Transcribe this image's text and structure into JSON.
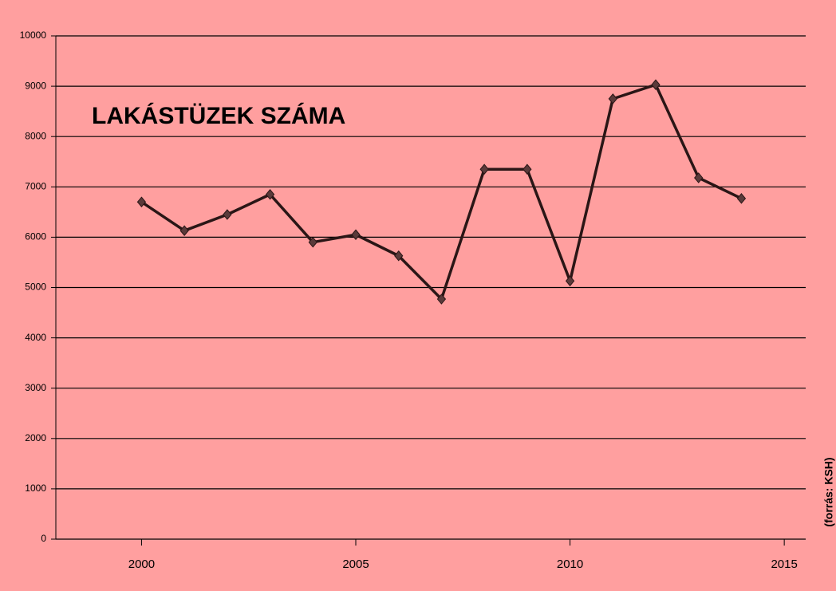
{
  "chart_data": {
    "type": "line",
    "title": "LAKÁSTÜZEK SZÁMA",
    "annotation": "(forrás: KSH)",
    "x": [
      2000,
      2001,
      2002,
      2003,
      2004,
      2005,
      2006,
      2007,
      2008,
      2009,
      2010,
      2011,
      2012,
      2013,
      2014
    ],
    "series": [
      {
        "name": "Lakástüzek",
        "color": "#2a1616",
        "values": [
          6700,
          6130,
          6450,
          6850,
          5900,
          6050,
          5630,
          4770,
          7350,
          7350,
          5130,
          8750,
          9030,
          7180,
          6770
        ]
      }
    ],
    "xlim": [
      1998,
      2015.5
    ],
    "xticks": [
      2000,
      2005,
      2010,
      2015
    ],
    "ylim": [
      0,
      10000
    ],
    "yticks": [
      0,
      1000,
      2000,
      3000,
      4000,
      5000,
      6000,
      7000,
      8000,
      9000,
      10000
    ],
    "grid": true,
    "background": "#ff9f9f",
    "title_color": "#c00000"
  }
}
